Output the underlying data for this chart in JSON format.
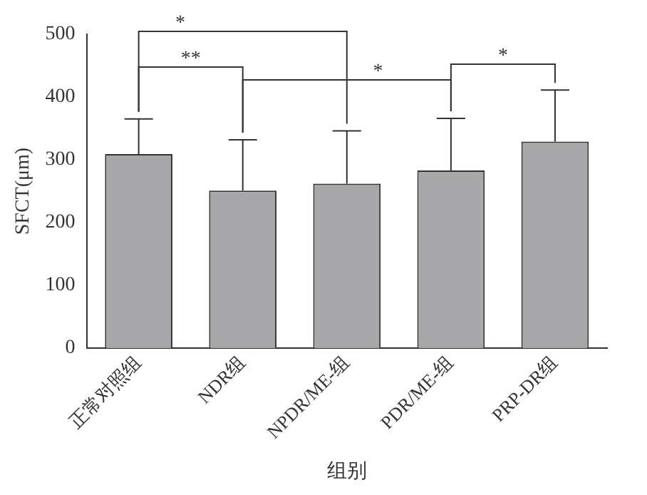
{
  "chart_data": {
    "type": "bar",
    "xlabel": "组别",
    "ylabel": "SFCT(μm)",
    "categories": [
      "正常对照组",
      "NDR组",
      "NPDR/ME-组",
      "PDR/ME-组",
      "PRP-DR组"
    ],
    "values": [
      309,
      251,
      262,
      283,
      329
    ],
    "errors": [
      [
        309,
        365
      ],
      [
        251,
        332
      ],
      [
        262,
        346
      ],
      [
        283,
        366
      ],
      [
        329,
        411
      ]
    ],
    "color": "#a8a8aa",
    "ylim": [
      0,
      500
    ],
    "yticks": [
      0,
      100,
      200,
      300,
      400,
      500
    ],
    "grid": false,
    "legend": false,
    "annotations": [
      "*",
      "**",
      "*",
      "*"
    ]
  }
}
